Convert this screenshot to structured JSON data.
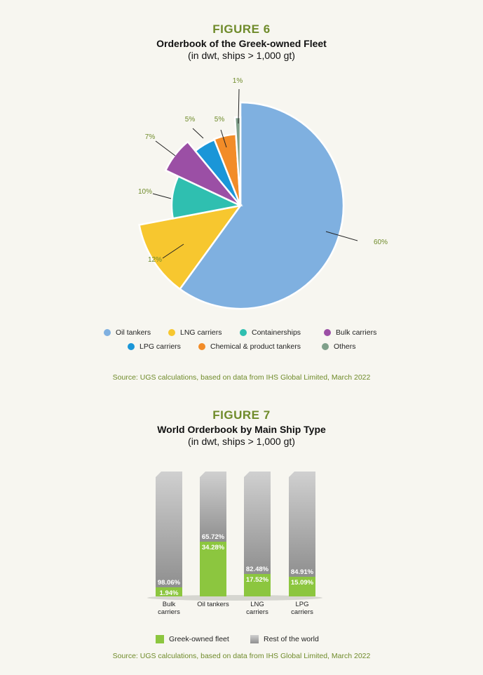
{
  "figure6": {
    "label": "FIGURE 6",
    "title": "Orderbook of the Greek-owned Fleet",
    "subtitle": "(in dwt, ships > 1,000 gt)",
    "source": "Source: UGS calculations, based on data from IHS Global Limited, March 2022",
    "legend": [
      {
        "label": "Oil tankers",
        "color": "#7fb0e0"
      },
      {
        "label": "LNG carriers",
        "color": "#f7c72f"
      },
      {
        "label": "Containerships",
        "color": "#2fbfb0"
      },
      {
        "label": "Bulk carriers",
        "color": "#9b4fa5"
      },
      {
        "label": "LPG carriers",
        "color": "#1a96d8"
      },
      {
        "label": "Chemical & product tankers",
        "color": "#f28c28"
      },
      {
        "label": "Others",
        "color": "#7fa08a"
      }
    ]
  },
  "figure7": {
    "label": "FIGURE 7",
    "title": "World Orderbook by Main Ship Type",
    "subtitle": "(in dwt, ships > 1,000 gt)",
    "source": "Source: UGS calculations, based on data from IHS Global Limited, March 2022",
    "legend": [
      {
        "label": "Greek-owned fleet",
        "color": "#8cc63f"
      },
      {
        "label": "Rest of the world",
        "color": "#b9b9b9"
      }
    ]
  },
  "chart_data": [
    {
      "type": "pie",
      "title": "Orderbook of the Greek-owned Fleet",
      "slices": [
        {
          "name": "Oil tankers",
          "value": 60,
          "label": "60%",
          "color": "#7fb0e0"
        },
        {
          "name": "LNG carriers",
          "value": 12,
          "label": "12%",
          "color": "#f7c72f"
        },
        {
          "name": "Containerships",
          "value": 10,
          "label": "10%",
          "color": "#2fbfb0"
        },
        {
          "name": "Bulk carriers",
          "value": 7,
          "label": "7%",
          "color": "#9b4fa5"
        },
        {
          "name": "LPG carriers",
          "value": 5,
          "label": "5%",
          "color": "#1a96d8"
        },
        {
          "name": "Chemical & product tankers",
          "value": 5,
          "label": "5%",
          "color": "#f28c28"
        },
        {
          "name": "Others",
          "value": 1,
          "label": "1%",
          "color": "#7fa08a"
        }
      ]
    },
    {
      "type": "bar",
      "stacked": true,
      "title": "World Orderbook by Main Ship Type",
      "categories": [
        "Bulk\ncarriers",
        "Oil tankers",
        "LNG\ncarriers",
        "LPG\ncarriers"
      ],
      "series": [
        {
          "name": "Greek-owned fleet",
          "values": [
            1.94,
            34.28,
            17.52,
            15.09
          ],
          "labels": [
            "1.94%",
            "34.28%",
            "17.52%",
            "15.09%"
          ],
          "color": "#8cc63f"
        },
        {
          "name": "Rest of the world",
          "values": [
            98.06,
            65.72,
            82.48,
            84.91
          ],
          "labels": [
            "98.06%",
            "65.72%",
            "82.48%",
            "84.91%"
          ],
          "color": "#b9b9b9"
        }
      ],
      "ylim": [
        0,
        100
      ]
    }
  ]
}
